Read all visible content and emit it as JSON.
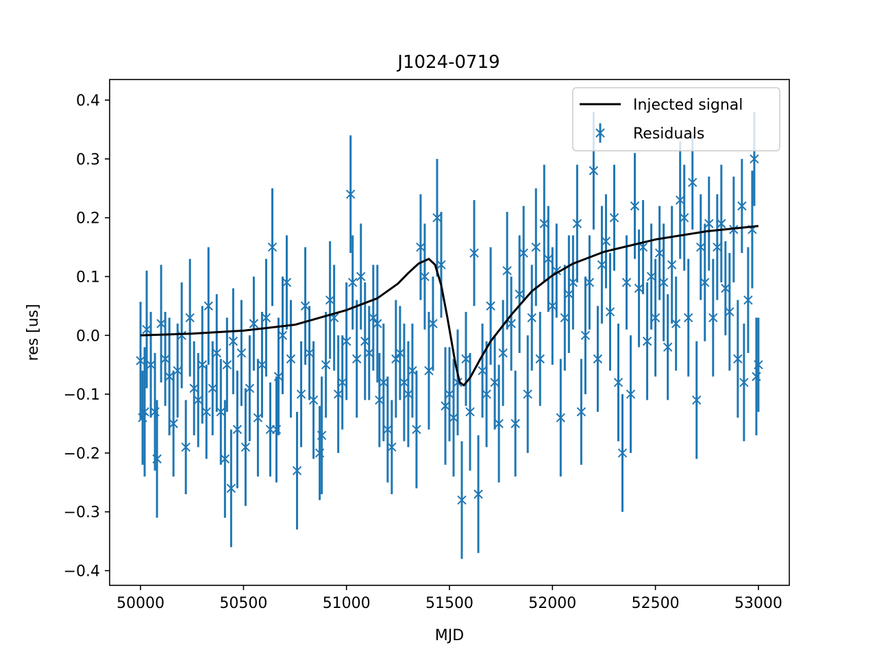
{
  "chart_data": {
    "type": "scatter",
    "title": "J1024-0719",
    "xlabel": "MJD",
    "ylabel": "res [us]",
    "xlim": [
      49850,
      53150
    ],
    "ylim": [
      -0.425,
      0.435
    ],
    "xticks": [
      {
        "value": 50000,
        "label": "50000"
      },
      {
        "value": 50500,
        "label": "50500"
      },
      {
        "value": 51000,
        "label": "51000"
      },
      {
        "value": 51500,
        "label": "51500"
      },
      {
        "value": 52000,
        "label": "52000"
      },
      {
        "value": 52500,
        "label": "52500"
      },
      {
        "value": 53000,
        "label": "53000"
      }
    ],
    "yticks": [
      {
        "value": 0.4,
        "label": "0.4"
      },
      {
        "value": 0.3,
        "label": "0.3"
      },
      {
        "value": 0.2,
        "label": "0.2"
      },
      {
        "value": 0.1,
        "label": "0.1"
      },
      {
        "value": 0.0,
        "label": "0.0"
      },
      {
        "value": -0.1,
        "label": "−0.1"
      },
      {
        "value": -0.2,
        "label": "−0.2"
      },
      {
        "value": -0.3,
        "label": "−0.3"
      },
      {
        "value": -0.4,
        "label": "−0.4"
      }
    ],
    "grid": false,
    "legend_position": "top-right",
    "colors": {
      "signal": "#000000",
      "residuals": "#1f77b4"
    },
    "series": [
      {
        "name": "Injected signal",
        "kind": "line",
        "x": [
          50000,
          50250,
          50500,
          50750,
          51000,
          51150,
          51250,
          51300,
          51350,
          51400,
          51430,
          51460,
          51490,
          51510,
          51530,
          51550,
          51570,
          51600,
          51650,
          51700,
          51800,
          51900,
          52000,
          52100,
          52250,
          52500,
          52750,
          53000
        ],
        "y": [
          0.0,
          0.003,
          0.008,
          0.018,
          0.043,
          0.063,
          0.088,
          0.106,
          0.122,
          0.13,
          0.12,
          0.085,
          0.03,
          -0.01,
          -0.05,
          -0.08,
          -0.085,
          -0.072,
          -0.04,
          -0.01,
          0.035,
          0.075,
          0.102,
          0.122,
          0.142,
          0.163,
          0.177,
          0.186
        ]
      },
      {
        "name": "Residuals",
        "kind": "errorbar",
        "marker": "x",
        "points": [
          {
            "x": 50000,
            "y": -0.043,
            "err": 0.1
          },
          {
            "x": 50010,
            "y": -0.14,
            "err": 0.08
          },
          {
            "x": 50020,
            "y": -0.13,
            "err": 0.11
          },
          {
            "x": 50030,
            "y": 0.01,
            "err": 0.1
          },
          {
            "x": 50050,
            "y": -0.05,
            "err": 0.09
          },
          {
            "x": 50070,
            "y": -0.13,
            "err": 0.1
          },
          {
            "x": 50080,
            "y": -0.21,
            "err": 0.1
          },
          {
            "x": 50100,
            "y": 0.02,
            "err": 0.1
          },
          {
            "x": 50120,
            "y": -0.04,
            "err": 0.08
          },
          {
            "x": 50140,
            "y": -0.07,
            "err": 0.1
          },
          {
            "x": 50160,
            "y": -0.15,
            "err": 0.09
          },
          {
            "x": 50180,
            "y": -0.06,
            "err": 0.08
          },
          {
            "x": 50200,
            "y": 0.0,
            "err": 0.09
          },
          {
            "x": 50220,
            "y": -0.19,
            "err": 0.08
          },
          {
            "x": 50240,
            "y": 0.03,
            "err": 0.1
          },
          {
            "x": 50260,
            "y": -0.09,
            "err": 0.08
          },
          {
            "x": 50280,
            "y": -0.11,
            "err": 0.08
          },
          {
            "x": 50300,
            "y": -0.05,
            "err": 0.1
          },
          {
            "x": 50320,
            "y": -0.13,
            "err": 0.08
          },
          {
            "x": 50330,
            "y": 0.05,
            "err": 0.1
          },
          {
            "x": 50350,
            "y": -0.09,
            "err": 0.08
          },
          {
            "x": 50370,
            "y": -0.03,
            "err": 0.1
          },
          {
            "x": 50390,
            "y": -0.13,
            "err": 0.09
          },
          {
            "x": 50410,
            "y": -0.21,
            "err": 0.1
          },
          {
            "x": 50420,
            "y": -0.05,
            "err": 0.08
          },
          {
            "x": 50440,
            "y": -0.26,
            "err": 0.1
          },
          {
            "x": 50450,
            "y": -0.01,
            "err": 0.09
          },
          {
            "x": 50470,
            "y": -0.16,
            "err": 0.1
          },
          {
            "x": 50490,
            "y": -0.03,
            "err": 0.09
          },
          {
            "x": 50510,
            "y": -0.19,
            "err": 0.1
          },
          {
            "x": 50530,
            "y": -0.09,
            "err": 0.09
          },
          {
            "x": 50550,
            "y": 0.02,
            "err": 0.08
          },
          {
            "x": 50570,
            "y": -0.14,
            "err": 0.1
          },
          {
            "x": 50590,
            "y": -0.05,
            "err": 0.09
          },
          {
            "x": 50610,
            "y": 0.03,
            "err": 0.1
          },
          {
            "x": 50630,
            "y": -0.16,
            "err": 0.08
          },
          {
            "x": 50640,
            "y": 0.15,
            "err": 0.1
          },
          {
            "x": 50660,
            "y": -0.16,
            "err": 0.09
          },
          {
            "x": 50670,
            "y": -0.07,
            "err": 0.1
          },
          {
            "x": 50690,
            "y": 0.0,
            "err": 0.1
          },
          {
            "x": 50710,
            "y": 0.09,
            "err": 0.08
          },
          {
            "x": 50730,
            "y": -0.04,
            "err": 0.1
          },
          {
            "x": 50760,
            "y": -0.23,
            "err": 0.1
          },
          {
            "x": 50780,
            "y": -0.1,
            "err": 0.09
          },
          {
            "x": 50800,
            "y": 0.05,
            "err": 0.1
          },
          {
            "x": 50820,
            "y": -0.03,
            "err": 0.08
          },
          {
            "x": 50840,
            "y": -0.11,
            "err": 0.1
          },
          {
            "x": 50870,
            "y": -0.2,
            "err": 0.08
          },
          {
            "x": 50880,
            "y": -0.17,
            "err": 0.1
          },
          {
            "x": 50900,
            "y": -0.05,
            "err": 0.09
          },
          {
            "x": 50920,
            "y": 0.06,
            "err": 0.1
          },
          {
            "x": 50940,
            "y": 0.03,
            "err": 0.09
          },
          {
            "x": 50960,
            "y": -0.1,
            "err": 0.1
          },
          {
            "x": 50980,
            "y": -0.08,
            "err": 0.08
          },
          {
            "x": 51000,
            "y": -0.01,
            "err": 0.1
          },
          {
            "x": 51020,
            "y": 0.24,
            "err": 0.1
          },
          {
            "x": 51030,
            "y": 0.09,
            "err": 0.08
          },
          {
            "x": 51050,
            "y": -0.04,
            "err": 0.1
          },
          {
            "x": 51070,
            "y": 0.1,
            "err": 0.09
          },
          {
            "x": 51090,
            "y": -0.01,
            "err": 0.1
          },
          {
            "x": 51110,
            "y": -0.03,
            "err": 0.08
          },
          {
            "x": 51130,
            "y": 0.03,
            "err": 0.09
          },
          {
            "x": 51150,
            "y": 0.02,
            "err": 0.1
          },
          {
            "x": 51160,
            "y": -0.11,
            "err": 0.08
          },
          {
            "x": 51180,
            "y": -0.08,
            "err": 0.1
          },
          {
            "x": 51200,
            "y": -0.16,
            "err": 0.09
          },
          {
            "x": 51220,
            "y": -0.19,
            "err": 0.08
          },
          {
            "x": 51240,
            "y": -0.04,
            "err": 0.1
          },
          {
            "x": 51260,
            "y": -0.03,
            "err": 0.08
          },
          {
            "x": 51280,
            "y": -0.08,
            "err": 0.1
          },
          {
            "x": 51300,
            "y": -0.1,
            "err": 0.09
          },
          {
            "x": 51320,
            "y": -0.06,
            "err": 0.08
          },
          {
            "x": 51340,
            "y": -0.16,
            "err": 0.1
          },
          {
            "x": 51360,
            "y": 0.15,
            "err": 0.09
          },
          {
            "x": 51380,
            "y": 0.1,
            "err": 0.09
          },
          {
            "x": 51400,
            "y": -0.06,
            "err": 0.1
          },
          {
            "x": 51420,
            "y": 0.02,
            "err": 0.08
          },
          {
            "x": 51440,
            "y": 0.2,
            "err": 0.1
          },
          {
            "x": 51460,
            "y": 0.12,
            "err": 0.09
          },
          {
            "x": 51480,
            "y": -0.12,
            "err": 0.1
          },
          {
            "x": 51500,
            "y": -0.1,
            "err": 0.08
          },
          {
            "x": 51520,
            "y": -0.14,
            "err": 0.1
          },
          {
            "x": 51540,
            "y": -0.08,
            "err": 0.09
          },
          {
            "x": 51560,
            "y": -0.28,
            "err": 0.1
          },
          {
            "x": 51580,
            "y": -0.04,
            "err": 0.08
          },
          {
            "x": 51600,
            "y": -0.13,
            "err": 0.1
          },
          {
            "x": 51620,
            "y": 0.14,
            "err": 0.09
          },
          {
            "x": 51640,
            "y": -0.27,
            "err": 0.1
          },
          {
            "x": 51660,
            "y": -0.06,
            "err": 0.08
          },
          {
            "x": 51680,
            "y": -0.1,
            "err": 0.09
          },
          {
            "x": 51700,
            "y": 0.05,
            "err": 0.1
          },
          {
            "x": 51720,
            "y": -0.08,
            "err": 0.08
          },
          {
            "x": 51740,
            "y": -0.15,
            "err": 0.1
          },
          {
            "x": 51760,
            "y": -0.03,
            "err": 0.09
          },
          {
            "x": 51780,
            "y": 0.11,
            "err": 0.1
          },
          {
            "x": 51800,
            "y": 0.02,
            "err": 0.08
          },
          {
            "x": 51820,
            "y": -0.15,
            "err": 0.09
          },
          {
            "x": 51840,
            "y": 0.07,
            "err": 0.1
          },
          {
            "x": 51860,
            "y": 0.14,
            "err": 0.08
          },
          {
            "x": 51880,
            "y": -0.1,
            "err": 0.1
          },
          {
            "x": 51900,
            "y": 0.03,
            "err": 0.09
          },
          {
            "x": 51920,
            "y": 0.15,
            "err": 0.1
          },
          {
            "x": 51940,
            "y": -0.04,
            "err": 0.08
          },
          {
            "x": 51960,
            "y": 0.19,
            "err": 0.1
          },
          {
            "x": 51980,
            "y": 0.13,
            "err": 0.09
          },
          {
            "x": 52000,
            "y": 0.05,
            "err": 0.1
          },
          {
            "x": 52020,
            "y": 0.11,
            "err": 0.08
          },
          {
            "x": 52040,
            "y": -0.14,
            "err": 0.1
          },
          {
            "x": 52060,
            "y": 0.03,
            "err": 0.09
          },
          {
            "x": 52080,
            "y": 0.07,
            "err": 0.1
          },
          {
            "x": 52100,
            "y": 0.09,
            "err": 0.08
          },
          {
            "x": 52120,
            "y": 0.19,
            "err": 0.1
          },
          {
            "x": 52140,
            "y": -0.13,
            "err": 0.09
          },
          {
            "x": 52160,
            "y": 0.0,
            "err": 0.1
          },
          {
            "x": 52180,
            "y": 0.09,
            "err": 0.08
          },
          {
            "x": 52200,
            "y": 0.28,
            "err": 0.1
          },
          {
            "x": 52220,
            "y": -0.04,
            "err": 0.09
          },
          {
            "x": 52240,
            "y": 0.12,
            "err": 0.1
          },
          {
            "x": 52260,
            "y": 0.16,
            "err": 0.08
          },
          {
            "x": 52280,
            "y": 0.04,
            "err": 0.1
          },
          {
            "x": 52300,
            "y": 0.2,
            "err": 0.09
          },
          {
            "x": 52320,
            "y": -0.08,
            "err": 0.1
          },
          {
            "x": 52340,
            "y": -0.2,
            "err": 0.1
          },
          {
            "x": 52360,
            "y": 0.09,
            "err": 0.08
          },
          {
            "x": 52380,
            "y": -0.1,
            "err": 0.1
          },
          {
            "x": 52400,
            "y": 0.22,
            "err": 0.09
          },
          {
            "x": 52420,
            "y": 0.08,
            "err": 0.1
          },
          {
            "x": 52440,
            "y": 0.15,
            "err": 0.08
          },
          {
            "x": 52460,
            "y": -0.01,
            "err": 0.1
          },
          {
            "x": 52480,
            "y": 0.1,
            "err": 0.09
          },
          {
            "x": 52500,
            "y": 0.03,
            "err": 0.1
          },
          {
            "x": 52520,
            "y": 0.14,
            "err": 0.08
          },
          {
            "x": 52540,
            "y": 0.09,
            "err": 0.1
          },
          {
            "x": 52560,
            "y": -0.02,
            "err": 0.09
          },
          {
            "x": 52580,
            "y": 0.12,
            "err": 0.1
          },
          {
            "x": 52600,
            "y": 0.02,
            "err": 0.08
          },
          {
            "x": 52620,
            "y": 0.23,
            "err": 0.1
          },
          {
            "x": 52640,
            "y": 0.2,
            "err": 0.09
          },
          {
            "x": 52660,
            "y": 0.03,
            "err": 0.1
          },
          {
            "x": 52680,
            "y": 0.26,
            "err": 0.08
          },
          {
            "x": 52700,
            "y": -0.11,
            "err": 0.1
          },
          {
            "x": 52720,
            "y": 0.15,
            "err": 0.09
          },
          {
            "x": 52740,
            "y": 0.09,
            "err": 0.1
          },
          {
            "x": 52760,
            "y": 0.19,
            "err": 0.08
          },
          {
            "x": 52780,
            "y": 0.03,
            "err": 0.1
          },
          {
            "x": 52800,
            "y": 0.15,
            "err": 0.09
          },
          {
            "x": 52820,
            "y": 0.19,
            "err": 0.1
          },
          {
            "x": 52840,
            "y": 0.08,
            "err": 0.08
          },
          {
            "x": 52860,
            "y": 0.04,
            "err": 0.1
          },
          {
            "x": 52880,
            "y": 0.18,
            "err": 0.09
          },
          {
            "x": 52900,
            "y": -0.04,
            "err": 0.1
          },
          {
            "x": 52920,
            "y": 0.22,
            "err": 0.08
          },
          {
            "x": 52930,
            "y": -0.08,
            "err": 0.1
          },
          {
            "x": 52950,
            "y": 0.06,
            "err": 0.09
          },
          {
            "x": 52970,
            "y": 0.18,
            "err": 0.1
          },
          {
            "x": 52980,
            "y": 0.3,
            "err": 0.08
          },
          {
            "x": 52990,
            "y": -0.07,
            "err": 0.1
          },
          {
            "x": 53000,
            "y": -0.05,
            "err": 0.08
          }
        ]
      }
    ]
  }
}
